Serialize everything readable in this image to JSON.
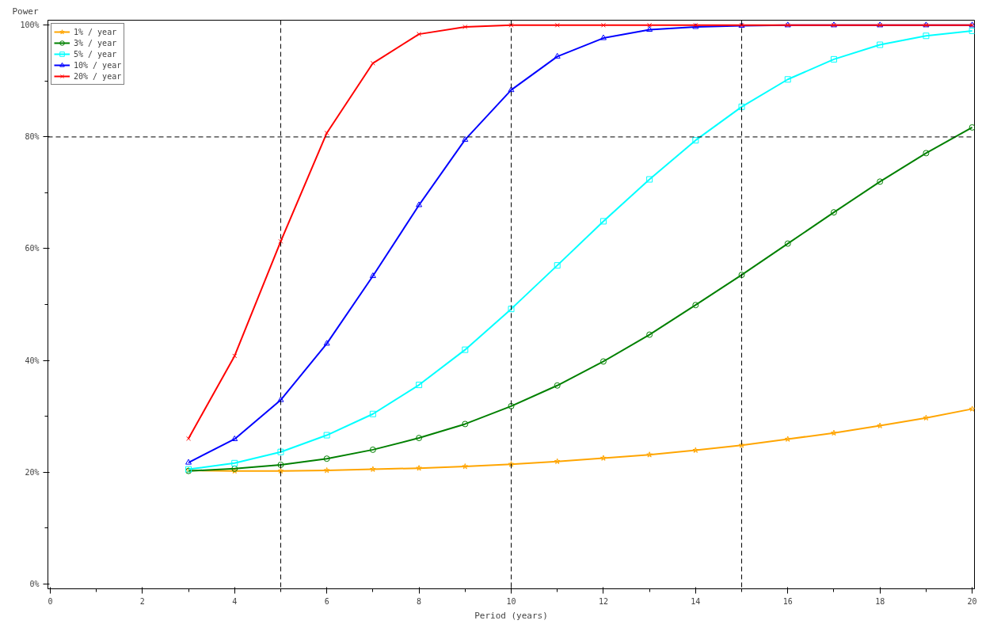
{
  "chart_data": {
    "type": "line",
    "xlabel": "Period (years)",
    "ylabel": "Power",
    "x": [
      3,
      4,
      5,
      6,
      7,
      8,
      9,
      10,
      11,
      12,
      13,
      14,
      15,
      16,
      17,
      18,
      19,
      20
    ],
    "series": [
      {
        "name": "1% / year",
        "color": "#ffa500",
        "marker": "star",
        "values": [
          20.3,
          20.2,
          20.2,
          20.3,
          20.5,
          20.7,
          21.0,
          21.4,
          21.9,
          22.5,
          23.1,
          23.9,
          24.8,
          25.9,
          27.0,
          28.3,
          29.7,
          31.3
        ]
      },
      {
        "name": "3% / year",
        "color": "#008000",
        "marker": "circle",
        "values": [
          20.2,
          20.6,
          21.3,
          22.4,
          24.0,
          26.1,
          28.6,
          31.8,
          35.5,
          39.8,
          44.6,
          49.9,
          55.3,
          60.9,
          66.5,
          72.0,
          77.1,
          81.7
        ]
      },
      {
        "name": "5% / year",
        "color": "#00ffff",
        "marker": "square",
        "values": [
          20.5,
          21.6,
          23.6,
          26.6,
          30.4,
          35.6,
          41.9,
          49.2,
          57.0,
          64.9,
          72.4,
          79.4,
          85.4,
          90.3,
          93.9,
          96.5,
          98.1,
          99.0
        ]
      },
      {
        "name": "10% / year",
        "color": "#0000ff",
        "marker": "triangle",
        "values": [
          21.7,
          25.9,
          32.9,
          43.0,
          55.1,
          67.8,
          79.5,
          88.4,
          94.4,
          97.7,
          99.2,
          99.7,
          99.9,
          100,
          100,
          100,
          100,
          100
        ]
      },
      {
        "name": "20% / year",
        "color": "#ff0000",
        "marker": "cross",
        "values": [
          26.0,
          40.8,
          61.3,
          80.7,
          93.2,
          98.4,
          99.7,
          100,
          100,
          100,
          100,
          100,
          100,
          100,
          100,
          100,
          100,
          100
        ]
      }
    ],
    "xlim": [
      -0.05,
      20.05
    ],
    "ylim": [
      -0.9,
      100.9
    ],
    "xticks": [
      0,
      2,
      4,
      6,
      8,
      10,
      12,
      14,
      16,
      18,
      20
    ],
    "yticks": [
      {
        "value": 0,
        "label": "0%"
      },
      {
        "value": 20,
        "label": "20%"
      },
      {
        "value": 40,
        "label": "40%"
      },
      {
        "value": 60,
        "label": "60%"
      },
      {
        "value": 80,
        "label": "80%"
      },
      {
        "value": 100,
        "label": "100%"
      }
    ],
    "ref_lines": [
      {
        "axis": "y",
        "value": 80,
        "line_style": "dashed",
        "color": "#000000"
      },
      {
        "axis": "x",
        "value": 5,
        "line_style": "dashed",
        "color": "#000000"
      },
      {
        "axis": "x",
        "value": 10,
        "line_style": "dashed",
        "color": "#000000"
      },
      {
        "axis": "x",
        "value": 15,
        "line_style": "dashed",
        "color": "#000000"
      }
    ],
    "grid": false,
    "legend": "top left",
    "line_style": "solid"
  }
}
